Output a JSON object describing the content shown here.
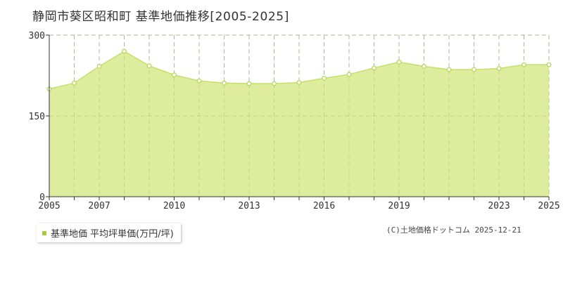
{
  "header": {
    "title": "静岡市葵区昭和町 基準地価推移[2005-2025]"
  },
  "chart_data": {
    "type": "area",
    "title": "静岡市葵区昭和町 基準地価推移[2005-2025]",
    "xlabel": "",
    "ylabel": "",
    "x": [
      2005,
      2006,
      2007,
      2008,
      2009,
      2010,
      2011,
      2012,
      2013,
      2014,
      2015,
      2016,
      2017,
      2018,
      2019,
      2020,
      2021,
      2022,
      2023,
      2024,
      2025
    ],
    "series": [
      {
        "name": "基準地価 平均坪単価(万円/坪)",
        "values": [
          200,
          211,
          242,
          270,
          243,
          226,
          215,
          211,
          210,
          210,
          212,
          220,
          227,
          239,
          250,
          242,
          236,
          236,
          238,
          245,
          245
        ]
      }
    ],
    "xlim": [
      2005,
      2025
    ],
    "ylim": [
      0,
      300
    ],
    "yticks": [
      0,
      150,
      300
    ],
    "xticks": [
      2005,
      2007,
      2010,
      2013,
      2016,
      2019,
      2023,
      2025
    ],
    "grid": true,
    "legend_position": "bottom-left"
  },
  "legend": {
    "label": "基準地価 平均坪単価(万円/坪)"
  },
  "footer": {
    "copyright": "(C)土地価格ドットコム 2025-12-21"
  },
  "colors": {
    "fill": "#dcec98",
    "line": "#c4e06a",
    "marker_stroke": "#b8d85c",
    "legend_marker": "#a6cc38",
    "grid": "#bbbbbb",
    "axis": "#333333"
  }
}
